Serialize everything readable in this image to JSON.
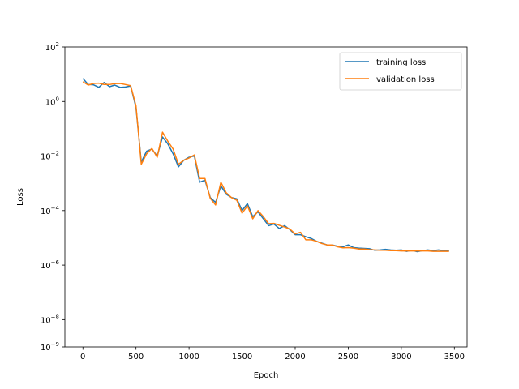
{
  "chart_data": {
    "type": "line",
    "title": "",
    "xlabel": "Epoch",
    "ylabel": "Loss",
    "xlim": [
      -170,
      3620
    ],
    "ylim": [
      1e-09,
      100
    ],
    "yscale": "log",
    "x_ticks": [
      0,
      500,
      1000,
      1500,
      2000,
      2500,
      3000,
      3500
    ],
    "x_tick_labels": [
      "0",
      "500",
      "1000",
      "1500",
      "2000",
      "2500",
      "3000",
      "3500"
    ],
    "y_ticks": [
      1e-09,
      1e-08,
      1e-06,
      0.0001,
      0.01,
      1,
      100
    ],
    "y_tick_labels": [
      {
        "base": "10",
        "exp": "−9"
      },
      {
        "base": "10",
        "exp": "−8"
      },
      {
        "base": "10",
        "exp": "−6"
      },
      {
        "base": "10",
        "exp": "−4"
      },
      {
        "base": "10",
        "exp": "−2"
      },
      {
        "base": "10",
        "exp": "0"
      },
      {
        "base": "10",
        "exp": "2"
      }
    ],
    "grid": false,
    "legend_position": "top-right",
    "x": [
      0,
      50,
      100,
      150,
      200,
      250,
      300,
      350,
      400,
      450,
      500,
      550,
      600,
      650,
      700,
      750,
      800,
      850,
      900,
      950,
      1000,
      1050,
      1100,
      1150,
      1200,
      1250,
      1300,
      1350,
      1400,
      1450,
      1500,
      1550,
      1600,
      1650,
      1700,
      1750,
      1800,
      1850,
      1900,
      1950,
      2000,
      2050,
      2100,
      2150,
      2200,
      2250,
      2300,
      2350,
      2400,
      2450,
      2500,
      2550,
      2600,
      2650,
      2700,
      2750,
      2800,
      2850,
      2900,
      2950,
      3000,
      3050,
      3100,
      3150,
      3200,
      3250,
      3300,
      3350,
      3400,
      3450
    ],
    "series": [
      {
        "name": "training loss",
        "color": "#1f77b4",
        "values": [
          7,
          4.2,
          4.1,
          3.3,
          5,
          3.5,
          4,
          3.3,
          3.4,
          3.7,
          0.6,
          0.006,
          0.015,
          0.018,
          0.01,
          0.05,
          0.028,
          0.012,
          0.004,
          0.007,
          0.009,
          0.01,
          0.0011,
          0.0013,
          0.0003,
          0.0002,
          0.0008,
          0.0004,
          0.0003,
          0.00027,
          0.0001,
          0.00018,
          6e-05,
          9e-05,
          5e-05,
          2.8e-05,
          3.2e-05,
          2.2e-05,
          2.8e-05,
          2e-05,
          1.3e-05,
          1.3e-05,
          1.1e-05,
          9.5e-06,
          7.5e-06,
          6.4e-06,
          5.5e-06,
          5.5e-06,
          4.9e-06,
          4.7e-06,
          5.5e-06,
          4.4e-06,
          4.2e-06,
          4.1e-06,
          4e-06,
          3.5e-06,
          3.6e-06,
          3.8e-06,
          3.6e-06,
          3.5e-06,
          3.6e-06,
          3.2e-06,
          3.5e-06,
          3.1e-06,
          3.4e-06,
          3.6e-06,
          3.4e-06,
          3.6e-06,
          3.4e-06,
          3.4e-06
        ]
      },
      {
        "name": "validation loss",
        "color": "#ff7f0e",
        "values": [
          5.3,
          4,
          4.6,
          4.7,
          4.2,
          4.2,
          4.5,
          4.6,
          4.2,
          3.8,
          0.7,
          0.005,
          0.012,
          0.019,
          0.009,
          0.075,
          0.035,
          0.018,
          0.005,
          0.007,
          0.0085,
          0.011,
          0.0015,
          0.0015,
          0.00028,
          0.00016,
          0.0011,
          0.00045,
          0.0003,
          0.00024,
          8e-05,
          0.00015,
          5e-05,
          0.0001,
          6e-05,
          3.3e-05,
          3.4e-05,
          2.9e-05,
          2.5e-05,
          2.1e-05,
          1.4e-05,
          1.6e-05,
          8.5e-06,
          8.5e-06,
          7.5e-06,
          6.2e-06,
          5.5e-06,
          5.5e-06,
          4.7e-06,
          4.3e-06,
          4.4e-06,
          4.2e-06,
          3.9e-06,
          3.9e-06,
          3.7e-06,
          3.6e-06,
          3.5e-06,
          3.5e-06,
          3.4e-06,
          3.4e-06,
          3.3e-06,
          3.3e-06,
          3.3e-06,
          3.3e-06,
          3.3e-06,
          3.3e-06,
          3.2e-06,
          3.2e-06,
          3.2e-06,
          3.2e-06
        ]
      }
    ]
  }
}
